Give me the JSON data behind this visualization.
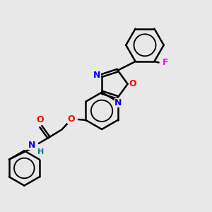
{
  "bg_color": "#e8e8e8",
  "bond_color": "#000000",
  "bond_width": 1.8,
  "N_color": "#0000ff",
  "O_color": "#ff0000",
  "F_color": "#ff00ff",
  "H_color": "#008080",
  "font_size": 9,
  "fig_size": [
    3.0,
    3.0
  ],
  "dpi": 100,
  "xlim": [
    0,
    10
  ],
  "ylim": [
    0,
    10
  ]
}
